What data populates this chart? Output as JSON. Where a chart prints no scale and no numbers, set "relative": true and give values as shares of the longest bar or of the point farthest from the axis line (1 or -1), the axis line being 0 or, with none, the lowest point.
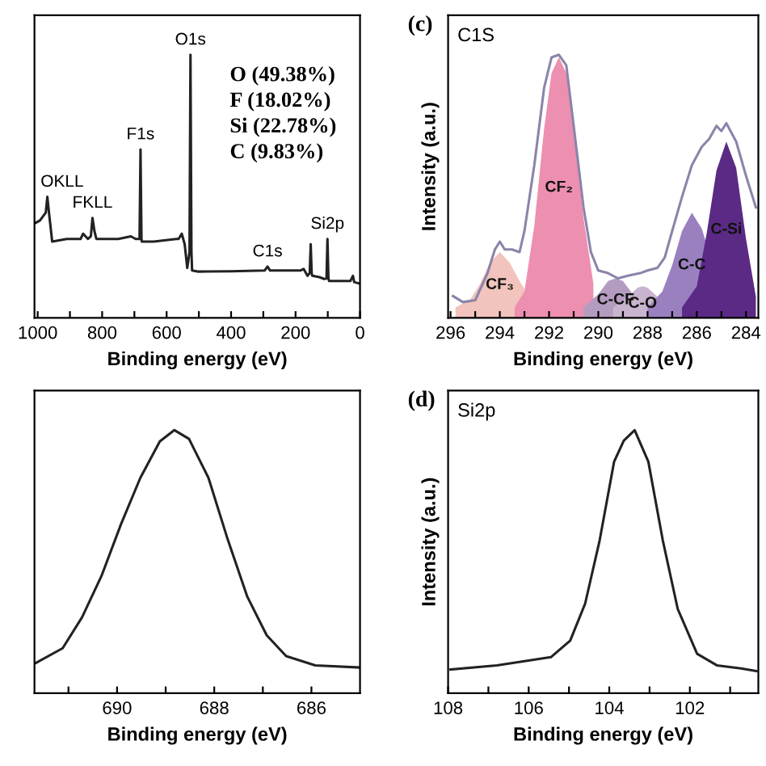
{
  "chart_data": [
    {
      "type": "line",
      "relative": true,
      "xlabel": "Binding energy (eV)",
      "xlim": [
        1010,
        0
      ],
      "xticks": [
        1000,
        {
          "value": 900,
          "label": null
        },
        800,
        {
          "value": 700,
          "label": null
        },
        600,
        {
          "value": 500,
          "label": null
        },
        400,
        {
          "value": 300,
          "label": null
        },
        200,
        {
          "value": 100,
          "label": null
        },
        0
      ],
      "legend": false,
      "grid": false,
      "marker": "none",
      "line_style": "solid",
      "series": [
        {
          "color": "#222222",
          "x": [
            1008,
            993,
            975,
            970,
            965,
            955,
            910,
            867,
            859,
            844,
            835,
            830,
            824,
            818,
            800,
            750,
            711,
            696,
            684,
            681,
            678,
            677,
            640,
            570,
            563,
            553,
            544,
            536,
            529,
            526,
            523,
            521,
            504,
            400,
            296,
            287,
            279,
            185,
            175,
            163,
            156,
            153,
            150,
            148,
            126,
            111,
            104,
            101,
            98,
            96,
            30,
            22,
            18,
            0
          ],
          "values": [
            0.36,
            0.37,
            0.4,
            0.46,
            0.4,
            0.29,
            0.3,
            0.3,
            0.32,
            0.3,
            0.31,
            0.38,
            0.33,
            0.3,
            0.3,
            0.3,
            0.31,
            0.3,
            0.3,
            0.64,
            0.3,
            0.29,
            0.29,
            0.3,
            0.3,
            0.32,
            0.28,
            0.19,
            0.25,
            1.0,
            0.25,
            0.18,
            0.176,
            0.177,
            0.18,
            0.195,
            0.18,
            0.18,
            0.186,
            0.16,
            0.17,
            0.28,
            0.17,
            0.16,
            0.155,
            0.148,
            0.15,
            0.3,
            0.15,
            0.14,
            0.14,
            0.16,
            0.136,
            0.13
          ]
        }
      ],
      "annotations": [
        {
          "text": "OKLL",
          "x": 970,
          "y": 0.46
        },
        {
          "text": "FKLL",
          "x": 830,
          "y": 0.38
        },
        {
          "text": "F1s",
          "x": 681,
          "y": 0.64
        },
        {
          "text": "O1s",
          "x": 526,
          "y": 1.0
        },
        {
          "text": "C1s",
          "x": 287,
          "y": 0.195
        },
        {
          "text": "Si2p",
          "x": 101,
          "y": 0.3
        },
        "O (49.38%)",
        "F (18.02%)",
        "Si (22.78%)",
        "C (9.83%)"
      ]
    },
    {
      "type": "area",
      "relative": true,
      "title": "C1S",
      "subtitle": "(c)",
      "xlabel": "Binding energy (eV)",
      "ylabel": "Intensity (a.u.)",
      "xlim": [
        296.1,
        283.5
      ],
      "xticks": [
        296,
        {
          "value": 295,
          "label": null
        },
        294,
        {
          "value": 293,
          "label": null
        },
        292,
        {
          "value": 291,
          "label": null
        },
        290,
        {
          "value": 289,
          "label": null
        },
        288,
        {
          "value": 287,
          "label": null
        },
        286,
        {
          "value": 285,
          "label": null
        },
        284
      ],
      "legend": false,
      "grid": false,
      "marker": "none",
      "line_style": "solid",
      "series": [
        {
          "name": "CF₃",
          "color": "#f2c4bd",
          "x": [
            295.8,
            295.2,
            294.8,
            294.4,
            294.0,
            293.6,
            293.2,
            293.0
          ],
          "values": [
            0.04,
            0.07,
            0.13,
            0.21,
            0.25,
            0.21,
            0.14,
            0.11
          ]
        },
        {
          "name": "CF₂",
          "color": "#ec8fb0",
          "x": [
            293.4,
            293.0,
            292.6,
            292.2,
            291.9,
            291.6,
            291.3,
            291.0,
            290.6,
            290.2
          ],
          "values": [
            0.04,
            0.1,
            0.35,
            0.72,
            0.93,
            0.99,
            0.93,
            0.72,
            0.38,
            0.13
          ]
        },
        {
          "name": "C-CF",
          "color": "#b49cc0",
          "x": [
            290.6,
            290.0,
            289.6,
            289.3,
            289.0,
            288.6
          ],
          "values": [
            0.04,
            0.09,
            0.14,
            0.15,
            0.14,
            0.09
          ]
        },
        {
          "name": "C-O",
          "color": "#c9b4cf",
          "x": [
            289.4,
            288.8,
            288.4,
            288.2,
            288.0,
            287.6
          ],
          "values": [
            0.04,
            0.08,
            0.115,
            0.12,
            0.115,
            0.08
          ]
        },
        {
          "name": "C-C",
          "color": "#9a80bf",
          "x": [
            288.0,
            287.4,
            287.0,
            286.6,
            286.2,
            285.8,
            285.6
          ],
          "values": [
            0.04,
            0.1,
            0.2,
            0.33,
            0.4,
            0.34,
            0.28
          ]
        },
        {
          "name": "C-Si",
          "color": "#5a2a85",
          "x": [
            286.6,
            286.0,
            285.6,
            285.2,
            284.8,
            284.4,
            284.0,
            283.6
          ],
          "values": [
            0.04,
            0.12,
            0.32,
            0.56,
            0.67,
            0.57,
            0.3,
            0.08
          ]
        },
        {
          "type": "line",
          "color": "#8b84aa",
          "x": [
            295.9,
            295.5,
            295.0,
            294.5,
            294.2,
            294.0,
            293.8,
            293.5,
            293.2,
            293.0,
            292.6,
            292.2,
            291.9,
            291.6,
            291.3,
            291.0,
            290.6,
            290.3,
            290.0,
            289.6,
            289.2,
            288.8,
            288.3,
            288.0,
            287.6,
            287.3,
            287.0,
            286.6,
            286.2,
            285.8,
            285.5,
            285.2,
            285.0,
            284.8,
            284.4,
            284.0,
            283.6
          ],
          "values": [
            0.083,
            0.06,
            0.067,
            0.17,
            0.26,
            0.29,
            0.26,
            0.26,
            0.25,
            0.33,
            0.58,
            0.875,
            0.99,
            1.0,
            0.96,
            0.73,
            0.42,
            0.25,
            0.18,
            0.17,
            0.15,
            0.16,
            0.17,
            0.18,
            0.19,
            0.23,
            0.33,
            0.46,
            0.58,
            0.65,
            0.68,
            0.73,
            0.71,
            0.74,
            0.67,
            0.54,
            0.42
          ]
        }
      ]
    },
    {
      "type": "line",
      "relative": true,
      "xlabel": "Binding energy (eV)",
      "xlim": [
        691.7,
        685.0
      ],
      "xticks": [
        {
          "value": 691,
          "label": null
        },
        690,
        {
          "value": 689,
          "label": null
        },
        688,
        {
          "value": 687,
          "label": null
        },
        686
      ],
      "legend": false,
      "grid": false,
      "marker": "none",
      "line_style": "solid",
      "series": [
        {
          "color": "#222222",
          "x": [
            691.7,
            691.12,
            690.72,
            690.32,
            689.92,
            689.52,
            689.12,
            688.82,
            688.52,
            688.12,
            687.72,
            687.32,
            686.92,
            686.52,
            685.92,
            685.02
          ],
          "values": [
            0.112,
            0.171,
            0.289,
            0.446,
            0.642,
            0.819,
            0.957,
            1.0,
            0.967,
            0.819,
            0.583,
            0.367,
            0.22,
            0.141,
            0.106,
            0.098
          ]
        }
      ]
    },
    {
      "type": "line",
      "relative": true,
      "title": "Si2p",
      "subtitle": "(d)",
      "xlabel": "Binding energy (eV)",
      "ylabel": "Intensity (a.u.)",
      "xlim": [
        108,
        100.3
      ],
      "xticks": [
        108,
        {
          "value": 107,
          "label": null
        },
        106,
        {
          "value": 105,
          "label": null
        },
        104,
        {
          "value": 103,
          "label": null
        },
        102,
        {
          "value": 101,
          "label": null
        }
      ],
      "legend": false,
      "grid": false,
      "marker": "none",
      "line_style": "solid",
      "series": [
        {
          "color": "#222222",
          "x": [
            107.94,
            106.79,
            105.45,
            104.97,
            104.6,
            104.24,
            103.88,
            103.64,
            103.37,
            103.03,
            102.67,
            102.3,
            101.82,
            101.33,
            100.73,
            100.35
          ],
          "values": [
            0.09,
            0.106,
            0.137,
            0.2,
            0.34,
            0.58,
            0.88,
            0.96,
            1.0,
            0.88,
            0.58,
            0.32,
            0.15,
            0.106,
            0.094,
            0.084
          ]
        }
      ]
    }
  ]
}
